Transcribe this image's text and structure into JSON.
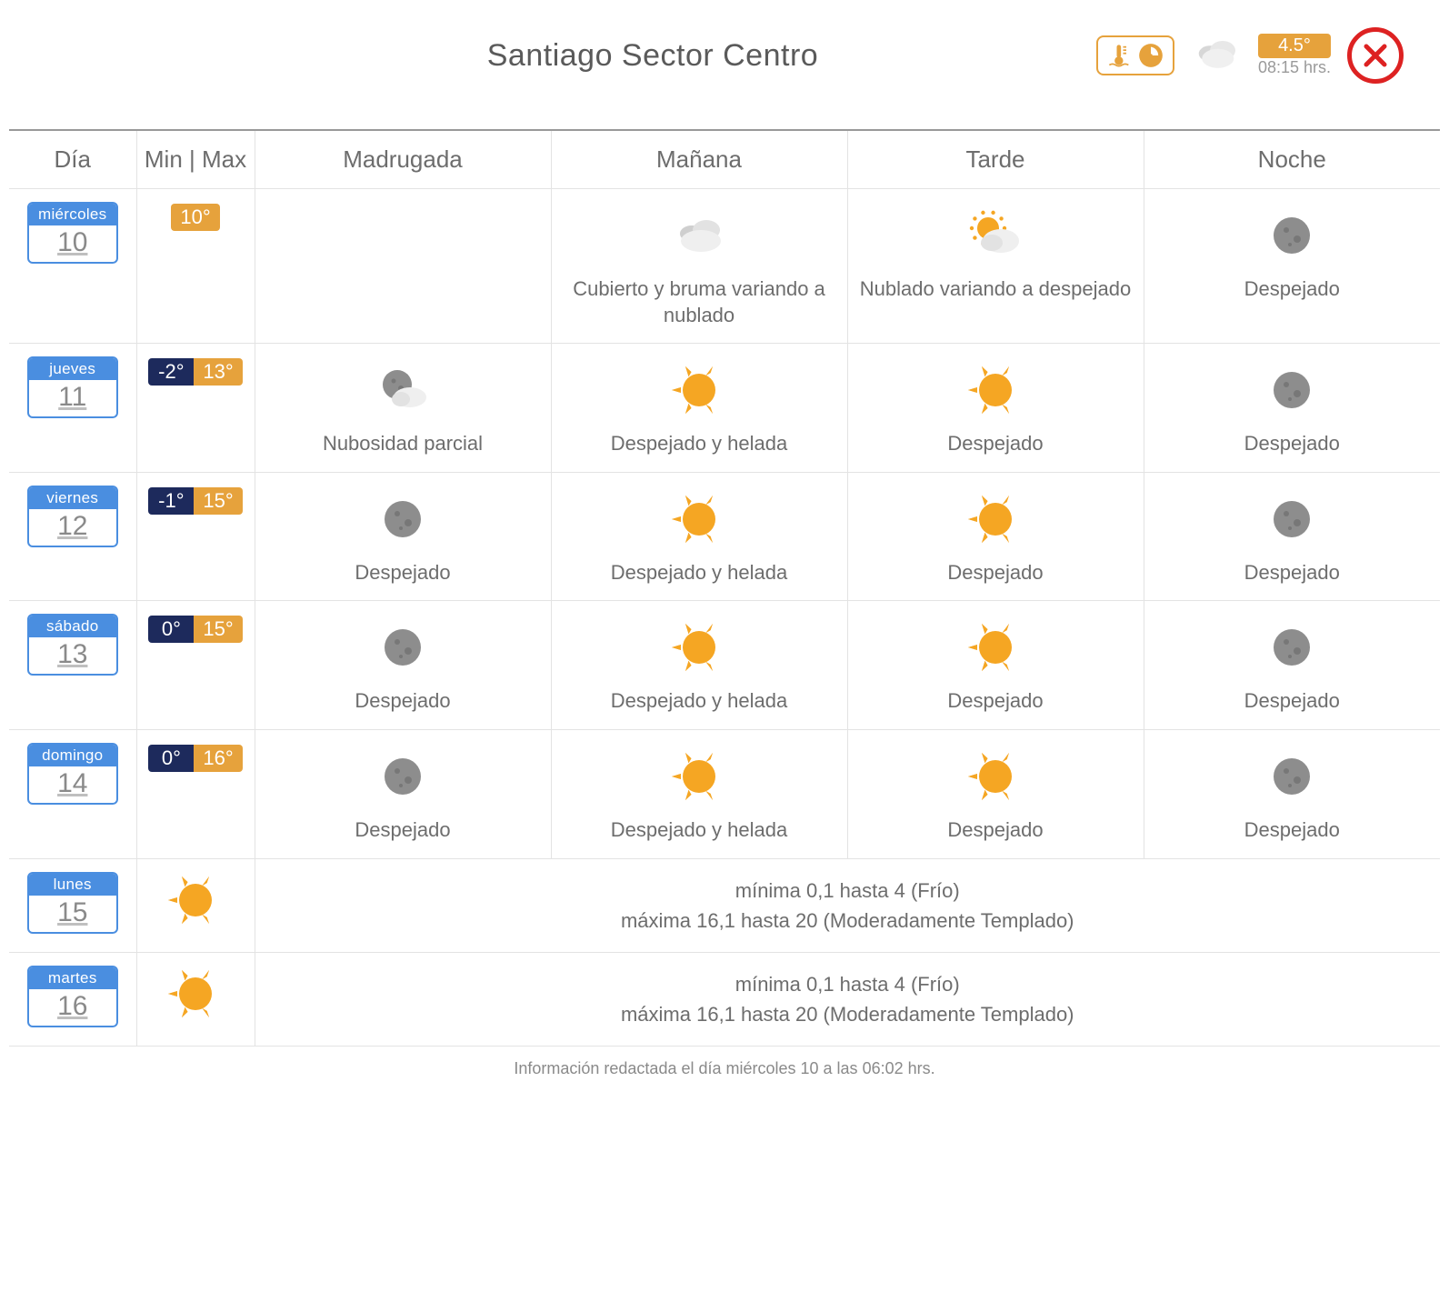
{
  "title": "Santiago Sector Centro",
  "current": {
    "temp": "4.5°",
    "time": "08:15 hrs.",
    "icon": "cloudy"
  },
  "columns": {
    "day": "Día",
    "minmax": "Min | Max",
    "periods": [
      "Madrugada",
      "Mañana",
      "Tarde",
      "Noche"
    ]
  },
  "colors": {
    "accent": "#e6a23c",
    "calendar": "#4a8ee0",
    "min_bg": "#1d2a5c",
    "max_bg": "#e6a23c",
    "sun": "#f5a623",
    "moon": "#8d8d8d",
    "cloud": "#d7d7d7",
    "close": "#d22",
    "border": "#e3e3e3",
    "text": "#6d6d6d"
  },
  "days": [
    {
      "dow": "miércoles",
      "dom": "10",
      "min": null,
      "max": "10°",
      "cells": [
        null,
        {
          "icon": "cloudy",
          "desc": "Cubierto y bruma variando a nublado"
        },
        {
          "icon": "partly-sunny",
          "desc": "Nublado variando a despejado"
        },
        {
          "icon": "clear-night",
          "desc": "Despejado"
        }
      ]
    },
    {
      "dow": "jueves",
      "dom": "11",
      "min": "-2°",
      "max": "13°",
      "cells": [
        {
          "icon": "partly-cloudy-night",
          "desc": "Nubosidad parcial"
        },
        {
          "icon": "sunny",
          "desc": "Despejado y helada"
        },
        {
          "icon": "sunny",
          "desc": "Despejado"
        },
        {
          "icon": "clear-night",
          "desc": "Despejado"
        }
      ]
    },
    {
      "dow": "viernes",
      "dom": "12",
      "min": "-1°",
      "max": "15°",
      "cells": [
        {
          "icon": "clear-night",
          "desc": "Despejado"
        },
        {
          "icon": "sunny",
          "desc": "Despejado y helada"
        },
        {
          "icon": "sunny",
          "desc": "Despejado"
        },
        {
          "icon": "clear-night",
          "desc": "Despejado"
        }
      ]
    },
    {
      "dow": "sábado",
      "dom": "13",
      "min": "0°",
      "max": "15°",
      "cells": [
        {
          "icon": "clear-night",
          "desc": "Despejado"
        },
        {
          "icon": "sunny",
          "desc": "Despejado y helada"
        },
        {
          "icon": "sunny",
          "desc": "Despejado"
        },
        {
          "icon": "clear-night",
          "desc": "Despejado"
        }
      ]
    },
    {
      "dow": "domingo",
      "dom": "14",
      "min": "0°",
      "max": "16°",
      "cells": [
        {
          "icon": "clear-night",
          "desc": "Despejado"
        },
        {
          "icon": "sunny",
          "desc": "Despejado y helada"
        },
        {
          "icon": "sunny",
          "desc": "Despejado"
        },
        {
          "icon": "clear-night",
          "desc": "Despejado"
        }
      ]
    },
    {
      "dow": "lunes",
      "dom": "15",
      "wide": true,
      "icon": "sunny",
      "text": "mínima 0,1 hasta 4 (Frío)\nmáxima 16,1 hasta 20 (Moderadamente Templado)"
    },
    {
      "dow": "martes",
      "dom": "16",
      "wide": true,
      "icon": "sunny",
      "text": "mínima 0,1 hasta 4 (Frío)\nmáxima 16,1 hasta 20 (Moderadamente Templado)"
    }
  ],
  "footer": "Información redactada el día miércoles 10 a las 06:02 hrs."
}
